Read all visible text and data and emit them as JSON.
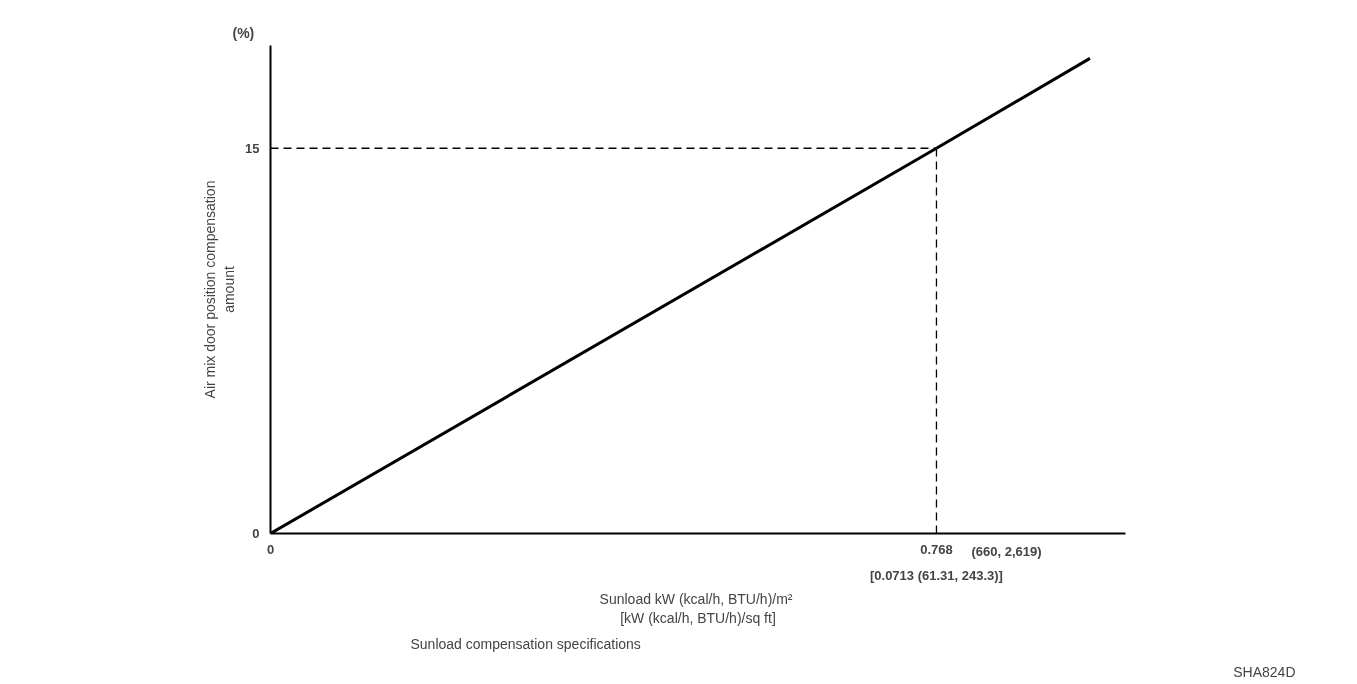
{
  "chart_data": {
    "type": "line",
    "xlabel": "Sunload  kW (kcal/h, BTU/h)/m²\n[kW (kcal/h, BTU/h)/sq ft]",
    "ylabel": "Air mix door position compensation\namount",
    "annotations": [
      "(%)",
      "Sunload compensation specifications",
      "SHA824D",
      "(660, 2,619)",
      "[0.0713 (61.31, 243.3)]"
    ],
    "x": [
      0,
      0.768,
      0.945
    ],
    "series": [
      {
        "color": "#000000",
        "values": [
          0,
          15,
          18.5
        ]
      }
    ],
    "xlim": [
      0,
      0.986
    ],
    "ylim": [
      0,
      19
    ],
    "xticks": [
      0,
      0.768
    ],
    "yticks": [
      0,
      15
    ],
    "ref_lines": [
      {
        "axis": "y",
        "value": 15,
        "line_style": "dashed"
      },
      {
        "axis": "x",
        "value": 0.768,
        "line_style": "dashed"
      }
    ],
    "grid": false,
    "marker": "none",
    "line_style": "solid"
  }
}
